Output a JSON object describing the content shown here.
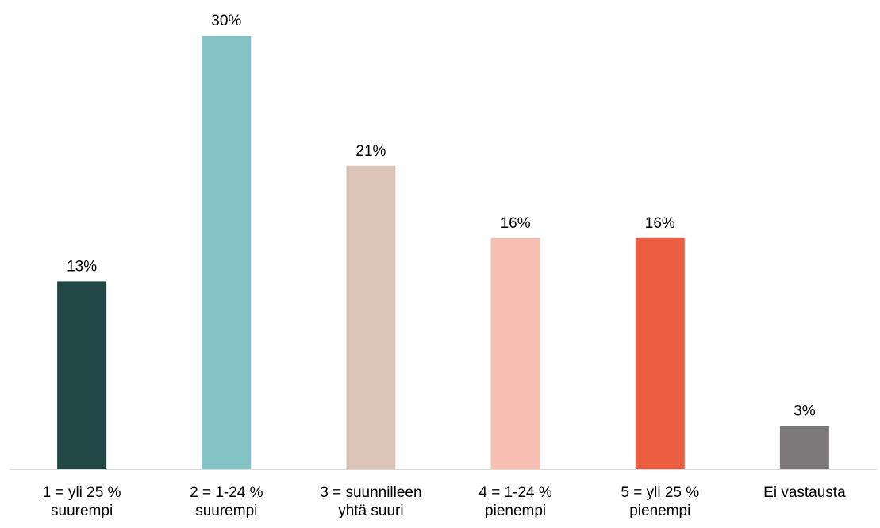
{
  "chart_data": {
    "type": "bar",
    "title": "",
    "xlabel": "",
    "ylabel": "",
    "ylim": [
      0,
      30
    ],
    "grid": false,
    "legend": "none",
    "categories": [
      [
        "1 = yli 25 %",
        "suurempi"
      ],
      [
        "2 = 1-24 %",
        "suurempi"
      ],
      [
        "3 = suunnilleen",
        "yhtä suuri"
      ],
      [
        "4 = 1-24 %",
        "pienempi"
      ],
      [
        "5 = yli 25 %",
        "pienempi"
      ],
      [
        "Ei vastausta"
      ]
    ],
    "values": [
      13,
      30,
      21,
      16,
      16,
      3
    ],
    "value_labels": [
      "13%",
      "30%",
      "21%",
      "16%",
      "16%",
      "3%"
    ],
    "colors": [
      "#214746",
      "#84C3C5",
      "#DDC4B9",
      "#F7BEB1",
      "#EB5F40",
      "#7B7979"
    ],
    "axis_color": "#D9D9D9"
  }
}
